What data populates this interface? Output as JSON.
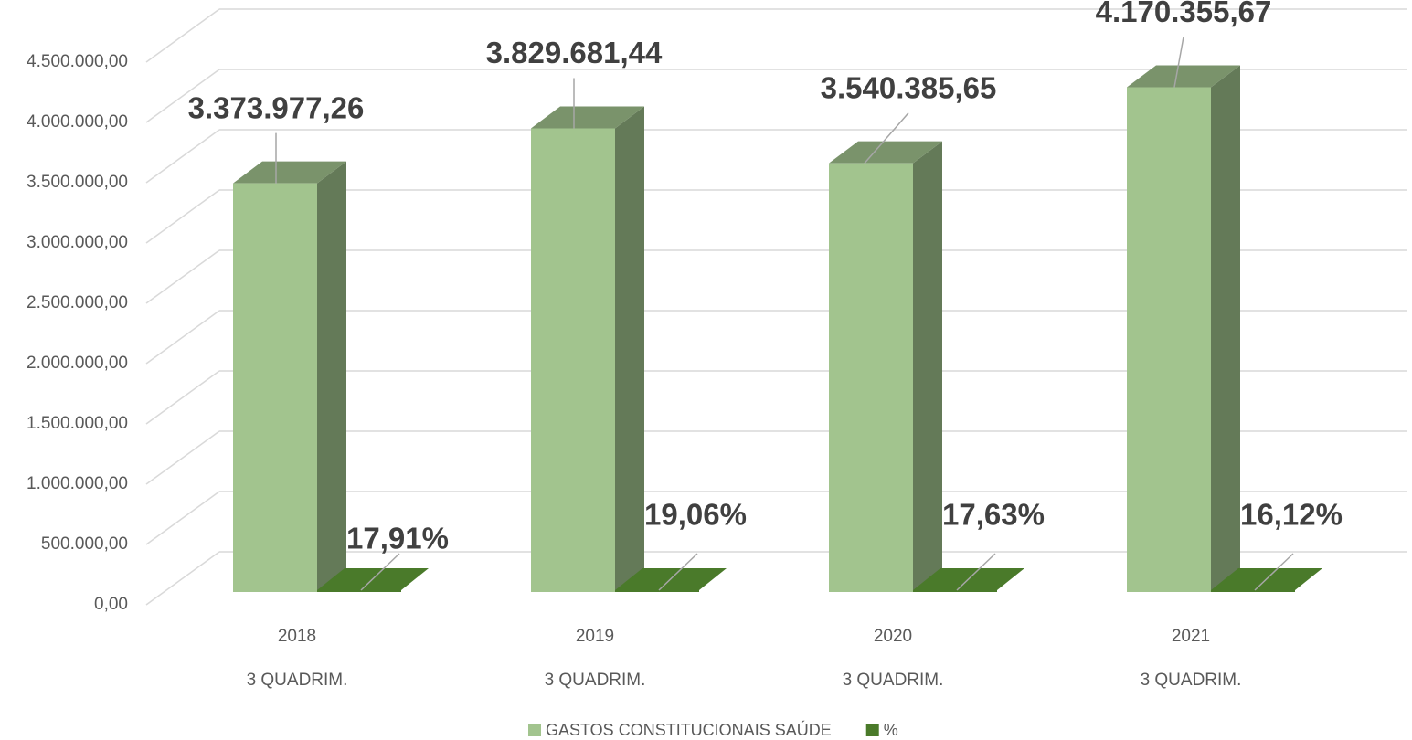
{
  "chart_data": {
    "type": "bar3d",
    "categories": [
      "2018",
      "2019",
      "2020",
      "2021"
    ],
    "subcategories": [
      "3 QUADRIM.",
      "3 QUADRIM.",
      "3 QUADRIM.",
      "3 QUADRIM."
    ],
    "series": [
      {
        "name": "GASTOS CONSTITUCIONAIS SAÚDE",
        "color": "#a2c48e",
        "values": [
          3373977.26,
          3829681.44,
          3540385.65,
          4170355.67
        ],
        "value_labels": [
          "3.373.977,26",
          "3.829.681,44",
          "3.540.385,65",
          "4.170.355,67"
        ]
      },
      {
        "name": "%",
        "color": "#4a7a2a",
        "values": [
          17.91,
          19.06,
          17.63,
          16.12
        ],
        "value_labels": [
          "17,91%",
          "19,06%",
          "17,63%",
          "16,12%"
        ]
      }
    ],
    "ylim": [
      0,
      4500000
    ],
    "yticks": [
      {
        "value": 0,
        "label": "0,00"
      },
      {
        "value": 500000,
        "label": "500.000,00"
      },
      {
        "value": 1000000,
        "label": "1.000.000,00"
      },
      {
        "value": 1500000,
        "label": "1.500.000,00"
      },
      {
        "value": 2000000,
        "label": "2.000.000,00"
      },
      {
        "value": 2500000,
        "label": "2.500.000,00"
      },
      {
        "value": 3000000,
        "label": "3.000.000,00"
      },
      {
        "value": 3500000,
        "label": "3.500.000,00"
      },
      {
        "value": 4000000,
        "label": "4.000.000,00"
      },
      {
        "value": 4500000,
        "label": "4.500.000,00"
      }
    ],
    "grid": true,
    "legend": "bottom"
  }
}
